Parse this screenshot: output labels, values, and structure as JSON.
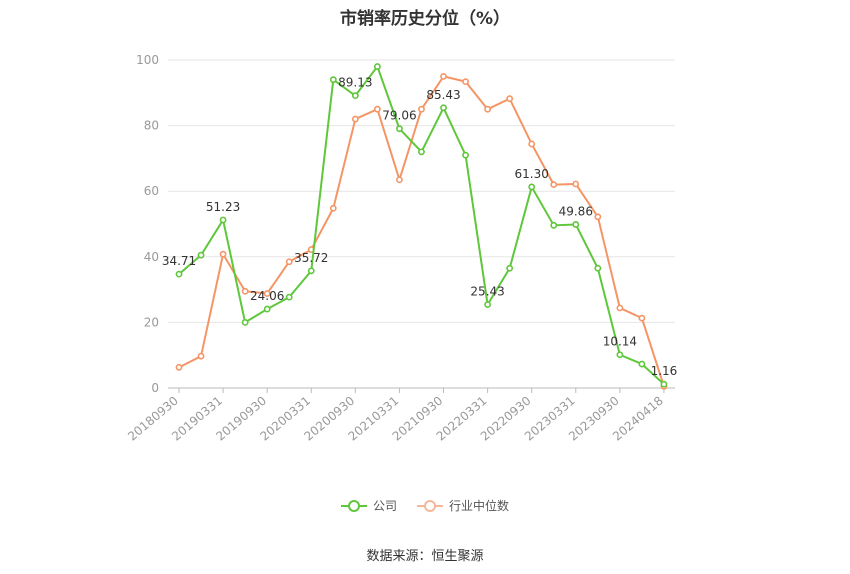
{
  "chart_data": {
    "type": "line",
    "title": "市销率历史分位（%）",
    "ylim": [
      0,
      100
    ],
    "yticks": [
      0,
      20,
      40,
      60,
      80,
      100
    ],
    "xtick_labels": [
      "20180930",
      "20190331",
      "20190930",
      "20200331",
      "20200930",
      "20210331",
      "20210930",
      "20220331",
      "20220930",
      "20230331",
      "20230930",
      "20240418"
    ],
    "x": [
      "20180930",
      "20181231",
      "20190331",
      "20190630",
      "20190930",
      "20191231",
      "20200331",
      "20200630",
      "20200930",
      "20201231",
      "20210331",
      "20210630",
      "20210930",
      "20211231",
      "20220331",
      "20220630",
      "20220930",
      "20221231",
      "20230331",
      "20230630",
      "20230930",
      "20231231",
      "20240418"
    ],
    "series": [
      {
        "name": "公司",
        "color": "#5ec73a",
        "values": [
          34.71,
          40.5,
          51.23,
          20.0,
          24.06,
          27.7,
          35.72,
          94.0,
          89.13,
          98.0,
          79.06,
          72.0,
          85.43,
          71.0,
          25.43,
          36.5,
          61.3,
          49.6,
          49.86,
          36.5,
          10.14,
          7.3,
          1.16
        ],
        "labels": {
          "0": "34.71",
          "2": "51.23",
          "4": "24.06",
          "6": "35.72",
          "8": "89.13",
          "10": "79.06",
          "12": "85.43",
          "14": "25.43",
          "16": "61.30",
          "18": "49.86",
          "20": "10.14",
          "22": "1.16"
        }
      },
      {
        "name": "行业中位数",
        "color": "#f59565",
        "values": [
          6.3,
          9.7,
          40.8,
          29.5,
          28.8,
          38.5,
          42.2,
          54.8,
          82.0,
          85.0,
          63.5,
          85.0,
          95.0,
          93.4,
          85.0,
          88.2,
          74.4,
          62.0,
          62.2,
          52.2,
          24.4,
          21.3,
          0.5
        ]
      }
    ],
    "grid": true,
    "legend_position": "bottom"
  },
  "source_text": "数据来源：恒生聚源"
}
